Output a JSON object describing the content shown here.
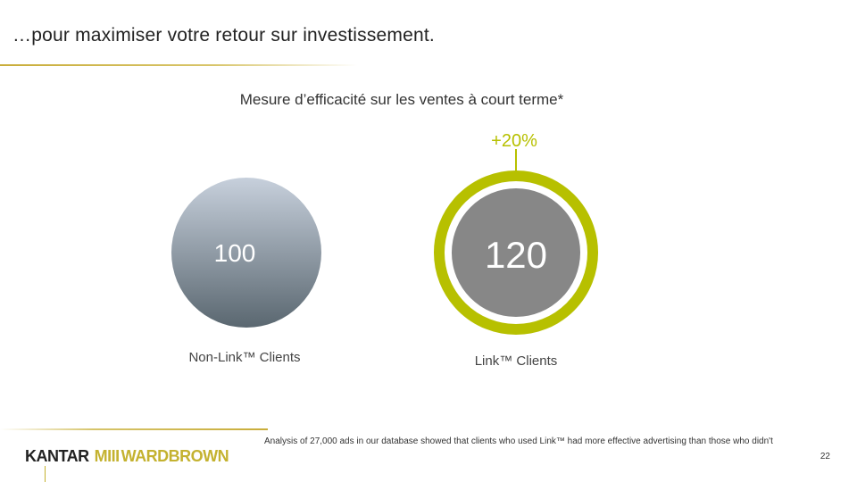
{
  "title": "…pour maximiser votre retour sur investissement.",
  "subtitle": "Mesure d’efficacité sur les ventes à court terme*",
  "colors": {
    "ring": "#b7c000",
    "circle_gray": "#878787",
    "gradient_top": "#c7d0dc",
    "gradient_bottom": "#5a6770",
    "rule_gold": "#c9ad3a"
  },
  "chart_data": {
    "type": "bubble",
    "title": "Mesure d’efficacité sur les ventes à court terme*",
    "categories": [
      "Non-Link™ Clients",
      "Link™ Clients"
    ],
    "values": [
      100,
      120
    ],
    "value_labels": [
      "100",
      "120"
    ],
    "annotation": "+20%"
  },
  "footnote": "Analysis of 27,000 ads in our database showed that clients who used Link™ had more effective advertising than those who didn't",
  "page_number": "22",
  "logo": {
    "brand1": "KANTAR",
    "mark": "MIII",
    "brand2": "WARDBROWN"
  }
}
